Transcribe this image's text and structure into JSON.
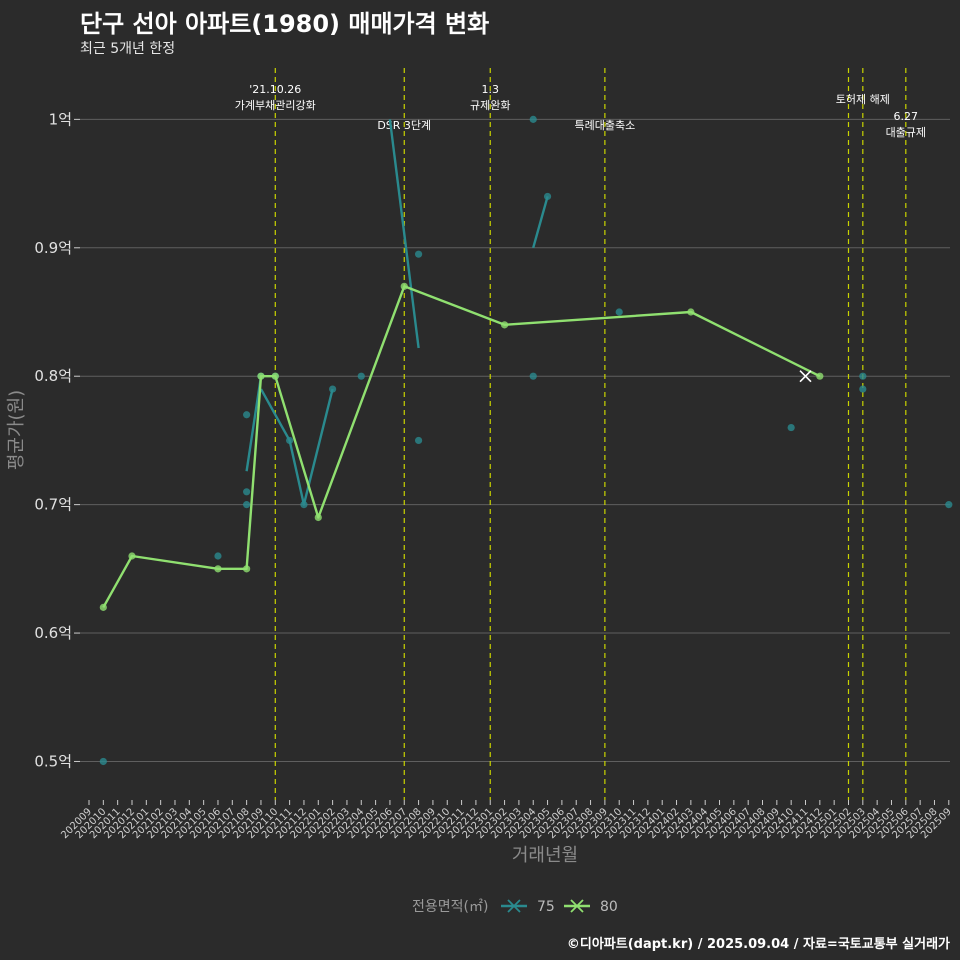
{
  "title": "단구 선아 아파트(1980) 매매가격 변화",
  "subtitle": "최근 5개년 한정",
  "caption": "©디아파트(dapt.kr) / 2025.09.04 / 자료=국토교통부 실거래가",
  "colors": {
    "background": "#2b2b2b",
    "grid": "#5f5f5f",
    "event_line": "#c9d400",
    "series_75": "#2a8a8e",
    "series_80": "#90e070"
  },
  "chart_data": {
    "type": "line",
    "xlabel": "거래년월",
    "ylabel": "평균가(원)",
    "x_categories": [
      "202009",
      "202010",
      "202011",
      "202012",
      "202101",
      "202102",
      "202103",
      "202104",
      "202105",
      "202106",
      "202107",
      "202108",
      "202109",
      "202110",
      "202111",
      "202112",
      "202201",
      "202202",
      "202203",
      "202204",
      "202205",
      "202206",
      "202207",
      "202208",
      "202209",
      "202210",
      "202211",
      "202212",
      "202301",
      "202302",
      "202303",
      "202304",
      "202305",
      "202306",
      "202307",
      "202308",
      "202309",
      "202310",
      "202311",
      "202312",
      "202401",
      "202402",
      "202403",
      "202404",
      "202405",
      "202406",
      "202407",
      "202408",
      "202409",
      "202410",
      "202411",
      "202412",
      "202501",
      "202502",
      "202503",
      "202504",
      "202505",
      "202506",
      "202507",
      "202508",
      "202509"
    ],
    "y_ticks": [
      {
        "value": 0.5,
        "label": "0.5억"
      },
      {
        "value": 0.6,
        "label": "0.6억"
      },
      {
        "value": 0.7,
        "label": "0.7억"
      },
      {
        "value": 0.8,
        "label": "0.8억"
      },
      {
        "value": 0.9,
        "label": "0.9억"
      },
      {
        "value": 1.0,
        "label": "1억"
      }
    ],
    "ylim": [
      0.47,
      1.04
    ],
    "grid": true,
    "legend": {
      "title": "전용면적(㎡)",
      "position": "bottom",
      "entries": [
        {
          "label": "75",
          "series": "75"
        },
        {
          "label": "80",
          "series": "80"
        }
      ]
    },
    "events": [
      {
        "month": "202110",
        "lines": [
          "'21.10.26",
          "가계부채관리강화"
        ]
      },
      {
        "month": "202207",
        "lines": [
          "DSR 3단계"
        ]
      },
      {
        "month": "202301",
        "lines": [
          "1.3",
          "규제완화"
        ]
      },
      {
        "month": "202309",
        "lines": [
          "특례대출축소"
        ]
      },
      {
        "month": "202502",
        "lines": []
      },
      {
        "month": "202503",
        "lines": [
          "토허제 해제"
        ]
      },
      {
        "month": "202506",
        "lines": [
          "6.27",
          "대출규제"
        ]
      }
    ],
    "series": [
      {
        "name": "75",
        "line": [
          {
            "x": "202109",
            "y": 0.79
          },
          {
            "x": "202111",
            "y": 0.75
          },
          {
            "x": "202112",
            "y": 0.7
          },
          {
            "x": "202202",
            "y": 0.79
          }
        ],
        "line_2": [
          {
            "x": "202108",
            "y": 0.726
          },
          {
            "x": "202109",
            "y": 0.8
          }
        ],
        "line_3": [
          {
            "x": "202206",
            "y": 1.0
          },
          {
            "x": "202208",
            "y": 0.822
          }
        ],
        "line_4": [
          {
            "x": "202304",
            "y": 0.9
          },
          {
            "x": "202305",
            "y": 0.94
          }
        ],
        "points": [
          {
            "x": "202010",
            "y": 0.5
          },
          {
            "x": "202106",
            "y": 0.66
          },
          {
            "x": "202108",
            "y": 0.77
          },
          {
            "x": "202108",
            "y": 0.71
          },
          {
            "x": "202108",
            "y": 0.7
          },
          {
            "x": "202109",
            "y": 0.8
          },
          {
            "x": "202110",
            "y": 0.8
          },
          {
            "x": "202111",
            "y": 0.75
          },
          {
            "x": "202112",
            "y": 0.7
          },
          {
            "x": "202202",
            "y": 0.79
          },
          {
            "x": "202204",
            "y": 0.8
          },
          {
            "x": "202208",
            "y": 0.895
          },
          {
            "x": "202208",
            "y": 0.75
          },
          {
            "x": "202304",
            "y": 1.0
          },
          {
            "x": "202304",
            "y": 0.8
          },
          {
            "x": "202305",
            "y": 0.94
          },
          {
            "x": "202310",
            "y": 0.85
          },
          {
            "x": "202410",
            "y": 0.76
          },
          {
            "x": "202503",
            "y": 0.8
          },
          {
            "x": "202503",
            "y": 0.79
          },
          {
            "x": "202509",
            "y": 0.7
          }
        ]
      },
      {
        "name": "80",
        "line": [
          {
            "x": "202010",
            "y": 0.62
          },
          {
            "x": "202012",
            "y": 0.66
          },
          {
            "x": "202106",
            "y": 0.65
          },
          {
            "x": "202108",
            "y": 0.65
          },
          {
            "x": "202109",
            "y": 0.8
          },
          {
            "x": "202110",
            "y": 0.8
          },
          {
            "x": "202201",
            "y": 0.69
          },
          {
            "x": "202207",
            "y": 0.87
          },
          {
            "x": "202302",
            "y": 0.84
          },
          {
            "x": "202403",
            "y": 0.85
          },
          {
            "x": "202412",
            "y": 0.8
          }
        ],
        "points": [
          {
            "x": "202010",
            "y": 0.62
          },
          {
            "x": "202012",
            "y": 0.66
          },
          {
            "x": "202106",
            "y": 0.65
          },
          {
            "x": "202108",
            "y": 0.65
          },
          {
            "x": "202109",
            "y": 0.8
          },
          {
            "x": "202110",
            "y": 0.8
          },
          {
            "x": "202201",
            "y": 0.69
          },
          {
            "x": "202207",
            "y": 0.87
          },
          {
            "x": "202302",
            "y": 0.84
          },
          {
            "x": "202403",
            "y": 0.85
          },
          {
            "x": "202412",
            "y": 0.8
          }
        ],
        "cross_marker": {
          "x": "202411",
          "y": 0.8
        }
      }
    ]
  }
}
